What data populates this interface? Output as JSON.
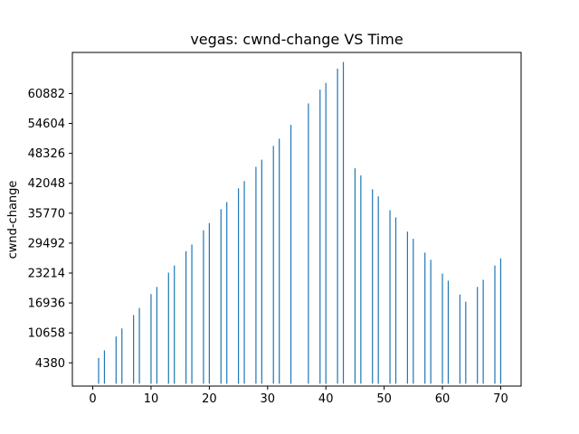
{
  "chart_data": {
    "type": "bar",
    "title": "vegas: cwnd-change VS Time",
    "xlabel": "",
    "ylabel": "cwnd-change",
    "xlim": [
      -3.5,
      73.5
    ],
    "ylim": [
      -500,
      69500
    ],
    "xticks": [
      0,
      10,
      20,
      30,
      40,
      50,
      60,
      70
    ],
    "yticks": [
      4380,
      10658,
      16936,
      23214,
      29492,
      35770,
      42048,
      48326,
      54604,
      60882
    ],
    "bar_color": "#1f77b4",
    "series": [
      {
        "name": "cwnd-change",
        "points": [
          {
            "x": 1,
            "y": 5400
          },
          {
            "x": 2,
            "y": 7000
          },
          {
            "x": 4,
            "y": 9900
          },
          {
            "x": 5,
            "y": 11600
          },
          {
            "x": 7,
            "y": 14400
          },
          {
            "x": 8,
            "y": 15900
          },
          {
            "x": 10,
            "y": 18800
          },
          {
            "x": 11,
            "y": 20300
          },
          {
            "x": 13,
            "y": 23300
          },
          {
            "x": 14,
            "y": 24800
          },
          {
            "x": 16,
            "y": 27800
          },
          {
            "x": 17,
            "y": 29200
          },
          {
            "x": 19,
            "y": 32200
          },
          {
            "x": 20,
            "y": 33700
          },
          {
            "x": 22,
            "y": 36600
          },
          {
            "x": 23,
            "y": 38100
          },
          {
            "x": 25,
            "y": 41000
          },
          {
            "x": 26,
            "y": 42500
          },
          {
            "x": 28,
            "y": 45500
          },
          {
            "x": 29,
            "y": 47000
          },
          {
            "x": 31,
            "y": 49900
          },
          {
            "x": 32,
            "y": 51400
          },
          {
            "x": 34,
            "y": 54300
          },
          {
            "x": 37,
            "y": 58800
          },
          {
            "x": 39,
            "y": 61700
          },
          {
            "x": 40,
            "y": 63100
          },
          {
            "x": 42,
            "y": 66100
          },
          {
            "x": 43,
            "y": 67500
          },
          {
            "x": 45,
            "y": 45200
          },
          {
            "x": 46,
            "y": 43700
          },
          {
            "x": 48,
            "y": 40800
          },
          {
            "x": 49,
            "y": 39300
          },
          {
            "x": 51,
            "y": 36400
          },
          {
            "x": 52,
            "y": 34900
          },
          {
            "x": 54,
            "y": 31900
          },
          {
            "x": 55,
            "y": 30400
          },
          {
            "x": 57,
            "y": 27500
          },
          {
            "x": 58,
            "y": 26000
          },
          {
            "x": 60,
            "y": 23100
          },
          {
            "x": 61,
            "y": 21600
          },
          {
            "x": 63,
            "y": 18700
          },
          {
            "x": 64,
            "y": 17200
          },
          {
            "x": 66,
            "y": 20300
          },
          {
            "x": 67,
            "y": 21800
          },
          {
            "x": 69,
            "y": 24800
          },
          {
            "x": 70,
            "y": 26300
          }
        ]
      }
    ]
  }
}
